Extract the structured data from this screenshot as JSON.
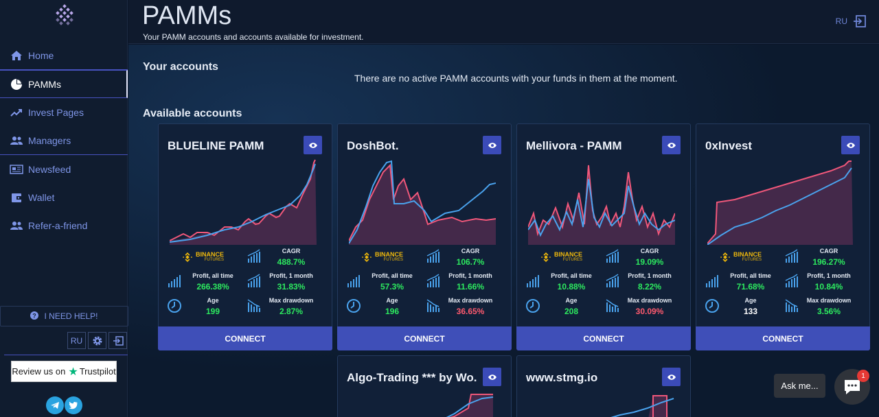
{
  "header": {
    "title": "PAMMs",
    "subtitle": "Your PAMM accounts and accounts available for investment.",
    "lang": "RU"
  },
  "sidebar": {
    "items": [
      {
        "label": "Home",
        "icon": "home-icon"
      },
      {
        "label": "PAMMs",
        "icon": "pie-chart-icon"
      },
      {
        "label": "Invest Pages",
        "icon": "trend-up-icon"
      },
      {
        "label": "Managers",
        "icon": "users-icon"
      },
      {
        "label": "Newsfeed",
        "icon": "newspaper-icon"
      },
      {
        "label": "Wallet",
        "icon": "wallet-icon"
      },
      {
        "label": "Refer-a-friend",
        "icon": "user-plus-icon"
      }
    ],
    "help_label": "I NEED HELP!",
    "lang": "RU",
    "trustpilot_prefix": "Review us on",
    "trustpilot_brand": "Trustpilot"
  },
  "your_accounts": {
    "title": "Your accounts",
    "empty_message": "There are no active PAMM accounts with your funds in them at the moment."
  },
  "available": {
    "title": "Available accounts",
    "labels": {
      "cagr": "CAGR",
      "profit_all": "Profit, all time",
      "profit_month": "Profit, 1 month",
      "age": "Age",
      "max_drawdown": "Max drawdown",
      "connect": "CONNECT",
      "binance_1": "BINANCE",
      "binance_2": "FUTURES"
    },
    "cards": [
      {
        "name": "BLUELINE PAMM",
        "cagr": "488.7%",
        "profit_all": "266.38%",
        "profit_month": "31.83%",
        "age": "199",
        "max_drawdown": "2.87%",
        "drawdown_color": "#2dea5f",
        "age_color": "#2dea5f"
      },
      {
        "name": "DoshBot.",
        "cagr": "106.7%",
        "profit_all": "57.3%",
        "profit_month": "11.66%",
        "age": "196",
        "max_drawdown": "36.65%",
        "drawdown_color": "#ff5a6e",
        "age_color": "#2dea5f"
      },
      {
        "name": "Mellivora - PAMM",
        "cagr": "19.09%",
        "profit_all": "10.88%",
        "profit_month": "8.22%",
        "age": "208",
        "max_drawdown": "30.09%",
        "drawdown_color": "#ff5a6e",
        "age_color": "#2dea5f"
      },
      {
        "name": "0xInvest",
        "cagr": "196.27%",
        "profit_all": "71.68%",
        "profit_month": "10.84%",
        "age": "133",
        "max_drawdown": "3.56%",
        "drawdown_color": "#2dea5f",
        "age_color": "#ffffff"
      },
      {
        "name": "Algo-Trading *** by Wo..."
      },
      {
        "name": "www.stmg.io"
      }
    ]
  },
  "chat": {
    "ask_label": "Ask me...",
    "badge_count": "1"
  },
  "colors": {
    "accent": "#3f4fb8",
    "positive": "#2dea5f",
    "negative": "#ff5a6e",
    "series_pink": "#f0577a",
    "series_blue": "#4aa3ee"
  }
}
